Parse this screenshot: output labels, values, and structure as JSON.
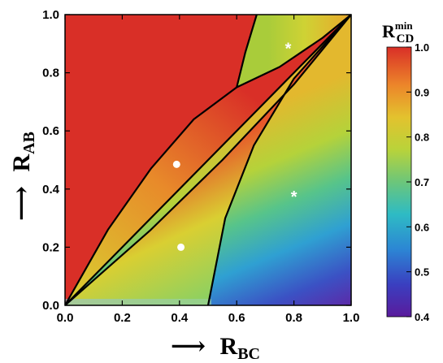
{
  "chart_data": {
    "type": "heatmap",
    "title": "",
    "xlabel": {
      "arrow": "⟶",
      "base": "R",
      "sub": "BC"
    },
    "ylabel": {
      "arrow": "⟶",
      "base": "R",
      "sub": "AB"
    },
    "xlim": [
      0,
      1
    ],
    "ylim": [
      0,
      1
    ],
    "x_ticks": [
      "0.0",
      "0.2",
      "0.4",
      "0.6",
      "0.8",
      "1.0"
    ],
    "y_ticks": [
      "0.0",
      "0.2",
      "0.4",
      "0.6",
      "0.8",
      "1.0"
    ],
    "colorbar": {
      "label": {
        "base": "R",
        "sub": "CD",
        "sup": "min"
      },
      "range": [
        0.4,
        1.0
      ],
      "ticks": [
        "0.4",
        "0.5",
        "0.6",
        "0.7",
        "0.8",
        "0.9",
        "1.0"
      ],
      "colormap": "rainbow"
    },
    "saturated_region": {
      "description_value": 1.0,
      "color": "#d92f27"
    },
    "boundary_curves": [
      {
        "name": "upper-boundary",
        "points": [
          [
            0,
            0
          ],
          [
            0.15,
            0.26
          ],
          [
            0.3,
            0.47
          ],
          [
            0.45,
            0.64
          ],
          [
            0.6,
            0.75
          ]
        ]
      },
      {
        "name": "kink-segment",
        "points": [
          [
            0.6,
            0.75
          ],
          [
            0.63,
            0.87
          ],
          [
            0.67,
            1.0
          ]
        ]
      },
      {
        "name": "upper-right-curve",
        "points": [
          [
            0.6,
            0.75
          ],
          [
            0.75,
            0.82
          ],
          [
            0.9,
            0.92
          ],
          [
            1.0,
            1.0
          ]
        ]
      },
      {
        "name": "diagonal",
        "points": [
          [
            0,
            0
          ],
          [
            1,
            1
          ]
        ]
      },
      {
        "name": "lower-curve",
        "points": [
          [
            0,
            0
          ],
          [
            0.3,
            0.26
          ],
          [
            0.55,
            0.5
          ],
          [
            0.8,
            0.76
          ],
          [
            1.0,
            1.0
          ]
        ]
      },
      {
        "name": "right-curve",
        "points": [
          [
            0.5,
            0
          ],
          [
            0.56,
            0.3
          ],
          [
            0.66,
            0.55
          ],
          [
            0.8,
            0.78
          ],
          [
            1.0,
            1.0
          ]
        ]
      }
    ],
    "markers": [
      {
        "type": "dot",
        "x": 0.39,
        "y": 0.485
      },
      {
        "type": "dot",
        "x": 0.405,
        "y": 0.2
      },
      {
        "type": "star",
        "symbol": "*",
        "x": 0.78,
        "y": 0.89
      },
      {
        "type": "star",
        "symbol": "*",
        "x": 0.8,
        "y": 0.38
      }
    ]
  }
}
